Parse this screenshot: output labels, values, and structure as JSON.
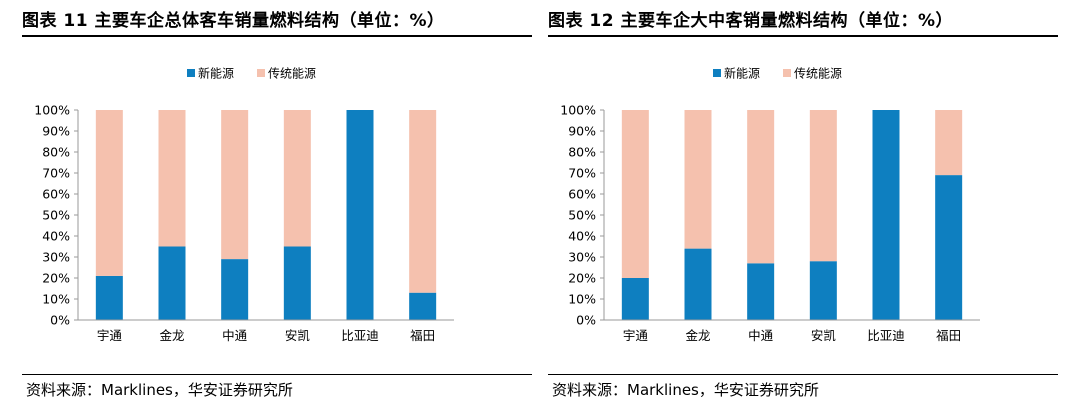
{
  "source_label": "资料来源：Marklines，华安证券研究所",
  "colors": {
    "new_energy": "#0E7FC0",
    "traditional": "#F5C1AE",
    "axis": "#9A9A9A"
  },
  "chart_data": [
    {
      "type": "bar",
      "stacked": true,
      "title": "图表 11  主要车企总体客车销量燃料结构（单位：%）",
      "categories": [
        "宇通",
        "金龙",
        "中通",
        "安凯",
        "比亚迪",
        "福田"
      ],
      "series": [
        {
          "name": "新能源",
          "values": [
            21,
            35,
            29,
            35,
            100,
            13
          ]
        },
        {
          "name": "传统能源",
          "values": [
            79,
            65,
            71,
            65,
            0,
            87
          ]
        }
      ],
      "ylim": [
        0,
        100
      ],
      "yticks": [
        "0%",
        "10%",
        "20%",
        "30%",
        "40%",
        "50%",
        "60%",
        "70%",
        "80%",
        "90%",
        "100%"
      ],
      "legend": "top-center",
      "grid": false
    },
    {
      "type": "bar",
      "stacked": true,
      "title": "图表 12  主要车企大中客销量燃料结构（单位：%）",
      "categories": [
        "宇通",
        "金龙",
        "中通",
        "安凯",
        "比亚迪",
        "福田"
      ],
      "series": [
        {
          "name": "新能源",
          "values": [
            20,
            34,
            27,
            28,
            100,
            69
          ]
        },
        {
          "name": "传统能源",
          "values": [
            80,
            66,
            73,
            72,
            0,
            31
          ]
        }
      ],
      "ylim": [
        0,
        100
      ],
      "yticks": [
        "0%",
        "10%",
        "20%",
        "30%",
        "40%",
        "50%",
        "60%",
        "70%",
        "80%",
        "90%",
        "100%"
      ],
      "legend": "top-center",
      "grid": false
    }
  ]
}
